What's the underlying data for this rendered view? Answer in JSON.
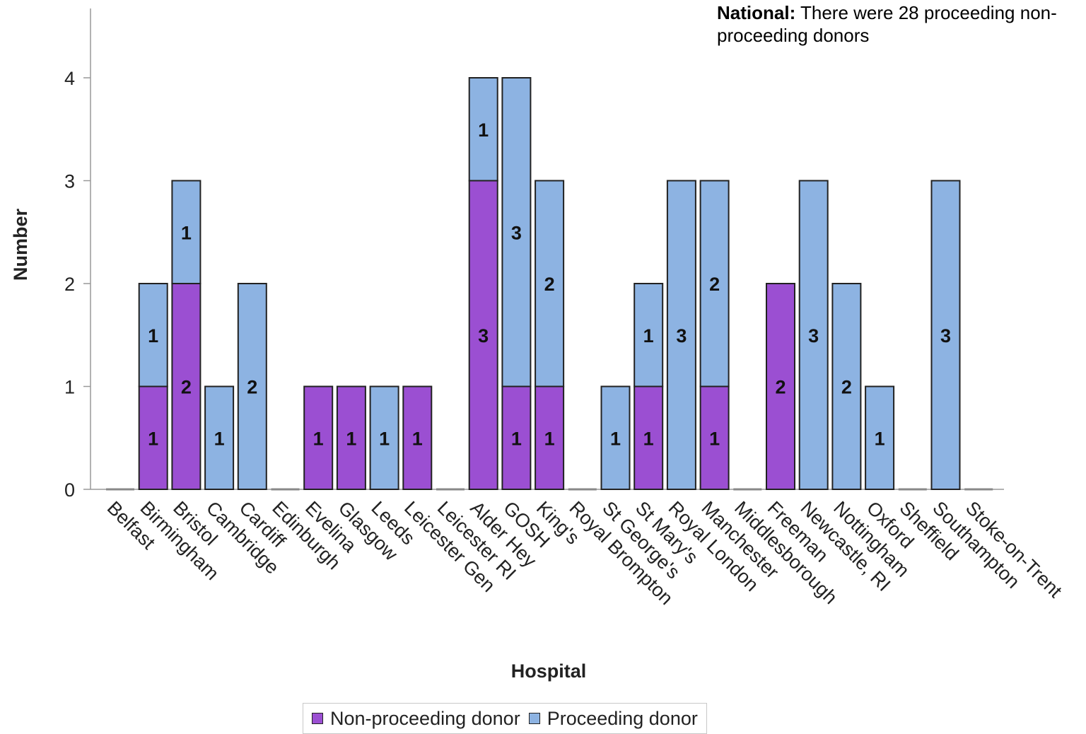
{
  "note": {
    "bold": "National:",
    "text": " There were 28 proceeding non-proceeding donors"
  },
  "colors": {
    "non_proceeding": "#9b4fd2",
    "proceeding": "#8db3e2"
  },
  "chart_data": {
    "type": "bar",
    "stacked": true,
    "xlabel": "Hospital",
    "ylabel": "Number",
    "ylim": [
      0,
      4.6
    ],
    "yticks": [
      0,
      1,
      2,
      3,
      4
    ],
    "grid": false,
    "legend_position": "bottom",
    "categories": [
      "Belfast",
      "Birmingham",
      "Bristol",
      "Cambridge",
      "Cardiff",
      "Edinburgh",
      "Evelina",
      "Glasgow",
      "Leeds",
      "Leicester Gen",
      "Leicester RI",
      "Alder Hey",
      "GOSH",
      "King's",
      "Royal Brompton",
      "St George's",
      "St Mary's",
      "Royal London",
      "Manchester",
      "Middlesborough",
      "Freeman",
      "Newcastle, RI",
      "Nottingham",
      "Oxford",
      "Sheffield",
      "Southampton",
      "Stoke-on-Trent"
    ],
    "series": [
      {
        "name": "Non-proceeding donor",
        "values": [
          0,
          1,
          2,
          0,
          0,
          0,
          1,
          1,
          0,
          1,
          0,
          3,
          1,
          1,
          0,
          0,
          1,
          0,
          1,
          0,
          2,
          0,
          0,
          0,
          0,
          0,
          0
        ]
      },
      {
        "name": "Proceeding donor",
        "values": [
          0,
          1,
          1,
          1,
          2,
          0,
          0,
          0,
          1,
          0,
          0,
          1,
          3,
          2,
          0,
          1,
          1,
          3,
          2,
          0,
          0,
          3,
          2,
          1,
          0,
          3,
          0
        ]
      }
    ]
  }
}
